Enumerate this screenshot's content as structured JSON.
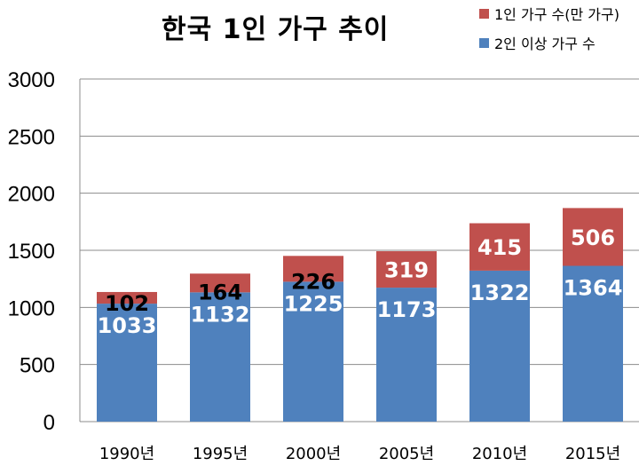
{
  "chart_data": {
    "type": "bar",
    "stacked": true,
    "title": "한국 1인 가구 추이",
    "categories": [
      "1990년",
      "1995년",
      "2000년",
      "2005년",
      "2010년",
      "2015년"
    ],
    "series": [
      {
        "name": "2인 이상 가구 수",
        "color": "#4f81bd",
        "values": [
          1033,
          1132,
          1225,
          1173,
          1322,
          1364
        ]
      },
      {
        "name": "1인 가구 수(만 가구)",
        "color": "#c0504d",
        "values": [
          102,
          164,
          226,
          319,
          415,
          506
        ]
      }
    ],
    "ylim": [
      0,
      3000
    ],
    "yticks": [
      0,
      500,
      1000,
      1500,
      2000,
      2500,
      3000
    ],
    "grid": true,
    "legend_position": "top-right"
  }
}
